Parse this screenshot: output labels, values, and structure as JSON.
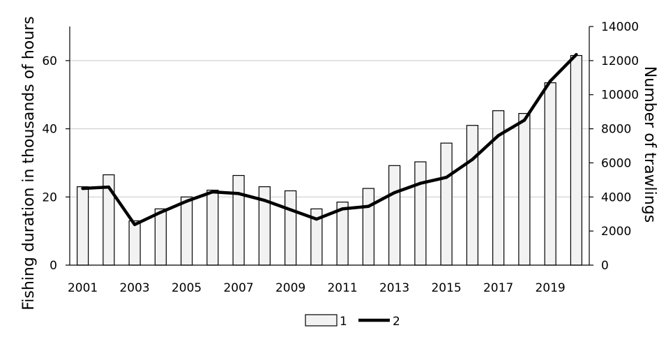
{
  "chart_data": {
    "type": "bar+line",
    "categories": [
      "2001",
      "2002",
      "2003",
      "2004",
      "2005",
      "2006",
      "2007",
      "2008",
      "2009",
      "2010",
      "2011",
      "2012",
      "2013",
      "2014",
      "2015",
      "2016",
      "2017",
      "2018",
      "2019",
      "2020"
    ],
    "x_tick_labels": [
      "2001",
      "2003",
      "2005",
      "2007",
      "2009",
      "2011",
      "2013",
      "2015",
      "2017",
      "2019"
    ],
    "ylabel_left": "Fishing duration in thousands of hours",
    "ylabel_right": "Number of trawlings",
    "ylim_left": [
      0,
      70
    ],
    "yticks_left": [
      0,
      20,
      40,
      60
    ],
    "ylim_right": [
      0,
      14000
    ],
    "yticks_right": [
      0,
      2000,
      4000,
      6000,
      8000,
      10000,
      12000,
      14000
    ],
    "grid": "horizontal",
    "legend_position": "bottom",
    "series": [
      {
        "name": "1",
        "type": "bar",
        "axis": "left",
        "color": "#f2f2f2",
        "edge_color": "#000000",
        "values": [
          23,
          26.5,
          13,
          16.5,
          20,
          22,
          26.3,
          23,
          21.8,
          16.5,
          18.5,
          22.5,
          29.2,
          30.3,
          35.8,
          41,
          45.3,
          44.5,
          53.5,
          61.5
        ]
      },
      {
        "name": "2",
        "type": "line",
        "axis": "right",
        "color": "#000000",
        "values": [
          4500,
          4580,
          2380,
          3100,
          3750,
          4300,
          4200,
          3800,
          3250,
          2700,
          3300,
          3450,
          4250,
          4800,
          5150,
          6200,
          7600,
          8500,
          10800,
          12350
        ]
      }
    ]
  }
}
